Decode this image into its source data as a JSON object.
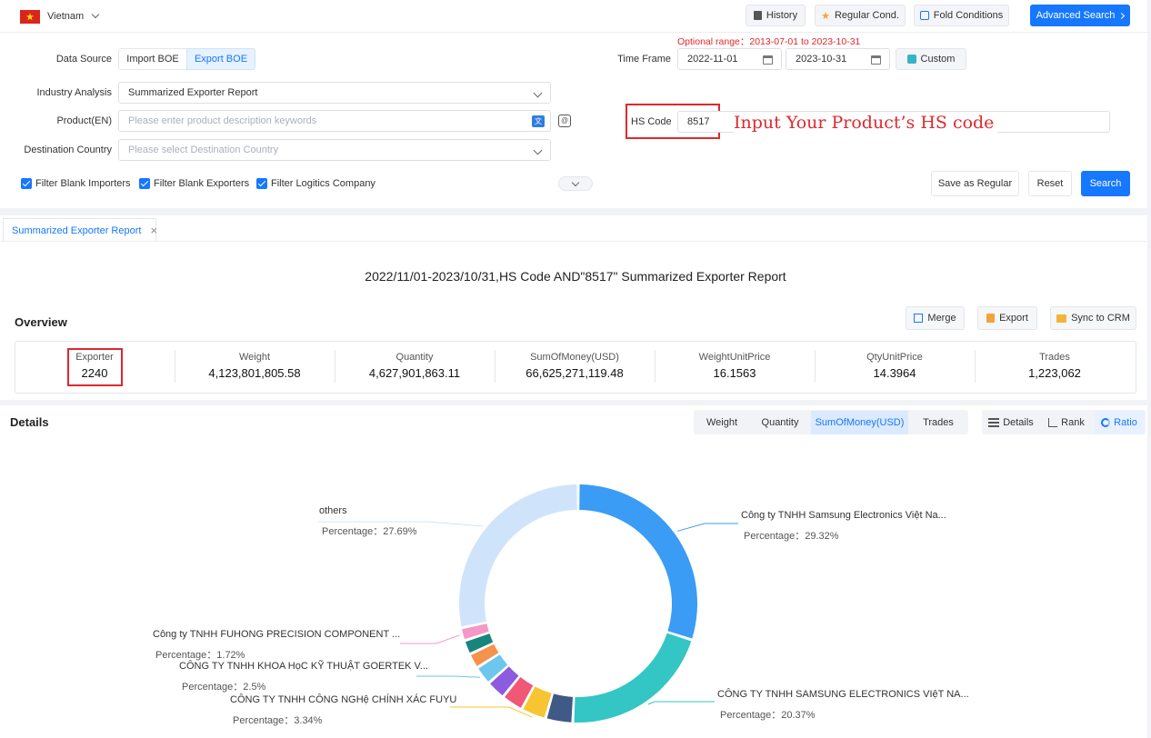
{
  "topbar": {
    "country": "Vietnam",
    "history_label": "History",
    "regular_label": "Regular Cond.",
    "fold_label": "Fold Conditions",
    "advanced_label": "Advanced Search"
  },
  "form": {
    "optional_range": "Optional range：2013-07-01 to 2023-10-31",
    "data_source_label": "Data Source",
    "import_boe": "Import BOE",
    "export_boe": "Export BOE",
    "time_frame_label": "Time Frame",
    "date_from": "2022-11-01",
    "date_to": "2023-10-31",
    "custom_label": "Custom",
    "industry_label": "Industry Analysis",
    "industry_value": "Summarized Exporter Report",
    "product_label": "Product(EN)",
    "product_placeholder": "Please enter product description keywords",
    "hs_label": "HS Code",
    "hs_value": "8517",
    "hs_annotation": "Input Your Product’s HS code",
    "dest_label": "Destination Country",
    "dest_placeholder": "Please select Destination Country",
    "filter1": "Filter Blank Importers",
    "filter2": "Filter Blank Exporters",
    "filter3": "Filter Logitics Company",
    "save_regular": "Save as Regular",
    "reset": "Reset",
    "search": "Search"
  },
  "report": {
    "tab_label": "Summarized Exporter Report",
    "title": "2022/11/01-2023/10/31,HS Code AND\"8517\" Summarized Exporter Report",
    "overview_label": "Overview",
    "merge": "Merge",
    "export": "Export",
    "sync": "Sync to CRM",
    "stats": [
      {
        "title": "Exporter",
        "value": "2240"
      },
      {
        "title": "Weight",
        "value": "4,123,801,805.58"
      },
      {
        "title": "Quantity",
        "value": "4,627,901,863.11"
      },
      {
        "title": "SumOfMoney(USD)",
        "value": "66,625,271,119.48"
      },
      {
        "title": "WeightUnitPrice",
        "value": "16.1563"
      },
      {
        "title": "QtyUnitPrice",
        "value": "14.3964"
      },
      {
        "title": "Trades",
        "value": "1,223,062"
      }
    ]
  },
  "details": {
    "label": "Details",
    "metrics": [
      "Weight",
      "Quantity",
      "SumOfMoney(USD)",
      "Trades"
    ],
    "views": [
      "Details",
      "Rank",
      "Ratio"
    ]
  },
  "chart_data": {
    "type": "pie",
    "metric": "SumOfMoney(USD)",
    "percent_prefix": "Percentage：",
    "labeled": [
      {
        "name": "Công ty TNHH Samsung Electronics Việt Na...",
        "pct_text": "29.32%"
      },
      {
        "name": "CÔNG TY TNHH SAMSUNG ELECTRONICS VIệT NA...",
        "pct_text": "20.37%"
      },
      {
        "name": "CÔNG TY TNHH CÔNG NGHệ CHÍNH XÁC FUYU",
        "pct_text": "3.34%"
      },
      {
        "name": "CÔNG TY TNHH KHOA HọC KỸ THUẬT GOERTEK V...",
        "pct_text": "2.5%"
      },
      {
        "name": "Công ty TNHH FUHONG PRECISION COMPONENT ...",
        "pct_text": "1.72%"
      },
      {
        "name": "others",
        "pct_text": "27.69%"
      }
    ],
    "slices": [
      {
        "value": 29.32,
        "color": "#3a9cf5"
      },
      {
        "value": 20.37,
        "color": "#33c6c4"
      },
      {
        "value": 3.6,
        "color": "#3f5a86"
      },
      {
        "value": 3.34,
        "color": "#f7c531"
      },
      {
        "value": 2.9,
        "color": "#f05876"
      },
      {
        "value": 2.6,
        "color": "#8c5be0"
      },
      {
        "value": 2.5,
        "color": "#6cc6ee"
      },
      {
        "value": 2.0,
        "color": "#f6924b"
      },
      {
        "value": 1.9,
        "color": "#17857c"
      },
      {
        "value": 1.72,
        "color": "#f598c5"
      },
      {
        "value": 27.69,
        "color": "#cfe4fb"
      }
    ]
  }
}
